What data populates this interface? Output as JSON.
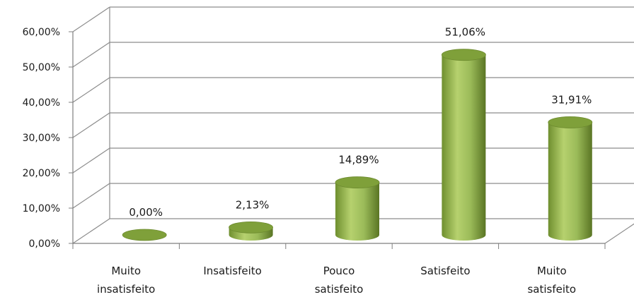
{
  "chart_data": {
    "type": "bar",
    "style": "3d-cylinder",
    "categories": [
      [
        "Muito",
        "insatisfeito"
      ],
      [
        "Insatisfeito"
      ],
      [
        "Pouco",
        "satisfeito"
      ],
      [
        "Satisfeito"
      ],
      [
        "Muito",
        "satisfeito"
      ]
    ],
    "values": [
      0.0,
      2.13,
      14.89,
      51.06,
      31.91
    ],
    "data_labels": [
      "0,00%",
      "2,13%",
      "14,89%",
      "51,06%",
      "31,91%"
    ],
    "y_ticks": [
      "0,00%",
      "10,00%",
      "20,00%",
      "30,00%",
      "40,00%",
      "50,00%",
      "60,00%"
    ],
    "ylim": [
      0,
      60
    ],
    "grid": true,
    "legend": "none",
    "colors": {
      "bar": "#9bbb59",
      "bar_dark": "#5f7a28",
      "bar_top": "#7fa03a",
      "axis": "#7f7f7f",
      "grid": "#8c8c8c"
    }
  }
}
